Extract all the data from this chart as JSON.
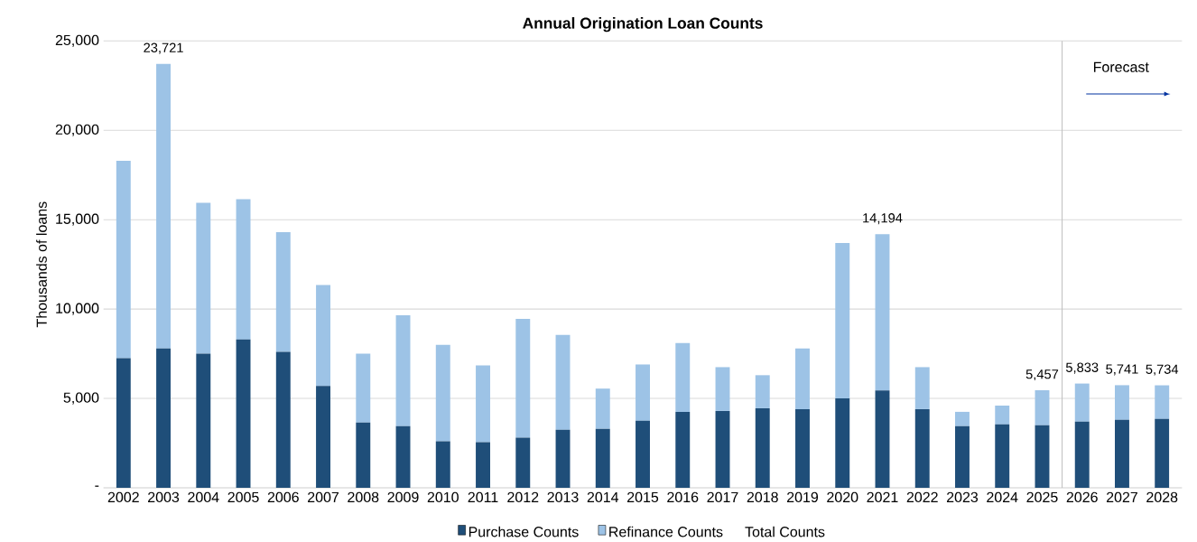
{
  "chart_data": {
    "type": "bar",
    "title": "Annual Origination Loan Counts",
    "ylabel": "Thousands of loans",
    "x": [
      2002,
      2003,
      2004,
      2005,
      2006,
      2007,
      2008,
      2009,
      2010,
      2011,
      2012,
      2013,
      2014,
      2015,
      2016,
      2017,
      2018,
      2019,
      2020,
      2021,
      2022,
      2023,
      2024,
      2025,
      2026,
      2027,
      2028
    ],
    "xlim": [
      2001.5,
      2028.5
    ],
    "xticks": [
      2002,
      2003,
      2004,
      2005,
      2006,
      2007,
      2008,
      2009,
      2010,
      2011,
      2012,
      2013,
      2014,
      2015,
      2016,
      2017,
      2018,
      2019,
      2020,
      2021,
      2022,
      2023,
      2024,
      2025,
      2026,
      2027,
      2028
    ],
    "ylim": [
      0,
      25000
    ],
    "yticks": [
      {
        "value": 0,
        "label": "-"
      },
      {
        "value": 5000,
        "label": "5,000"
      },
      {
        "value": 10000,
        "label": "10,000"
      },
      {
        "value": 15000,
        "label": "15,000"
      },
      {
        "value": 20000,
        "label": "20,000"
      },
      {
        "value": 25000,
        "label": "25,000"
      }
    ],
    "stacked": true,
    "grid": "y",
    "legend": "bottom",
    "series": [
      {
        "name": "Purchase Counts",
        "color": "#1f4e79",
        "values": [
          7250,
          7800,
          7500,
          8300,
          7600,
          5700,
          3650,
          3450,
          2600,
          2550,
          2800,
          3250,
          3300,
          3750,
          4250,
          4300,
          4450,
          4400,
          5000,
          5450,
          4400,
          3450,
          3550,
          3500,
          3700,
          3800,
          3850
        ]
      },
      {
        "name": "Refinance Counts",
        "color": "#9dc3e6",
        "values": [
          11050,
          15921,
          8450,
          7850,
          6700,
          5650,
          3850,
          6200,
          5400,
          4300,
          6650,
          5300,
          2250,
          3150,
          3850,
          2450,
          1850,
          3400,
          8700,
          8744,
          2350,
          800,
          1050,
          1957,
          2133,
          1941,
          1884
        ]
      },
      {
        "name": "Total Counts",
        "type": "line",
        "values": [
          null,
          null,
          null,
          null,
          null,
          null,
          null,
          null,
          null,
          null,
          null,
          null,
          null,
          null,
          null,
          null,
          null,
          null,
          null,
          null,
          null,
          null,
          null,
          null,
          null,
          null,
          null
        ]
      }
    ],
    "totals": [
      null,
      "23,721",
      null,
      null,
      null,
      null,
      null,
      null,
      null,
      null,
      null,
      null,
      null,
      null,
      null,
      null,
      null,
      null,
      null,
      "14,194",
      null,
      null,
      null,
      "5,457",
      "5,833",
      "5,741",
      "5,734"
    ],
    "ref_lines": [
      {
        "axis": "x",
        "value": 2025.5,
        "label": "Forecast",
        "color": "#bfbfbf"
      }
    ]
  }
}
